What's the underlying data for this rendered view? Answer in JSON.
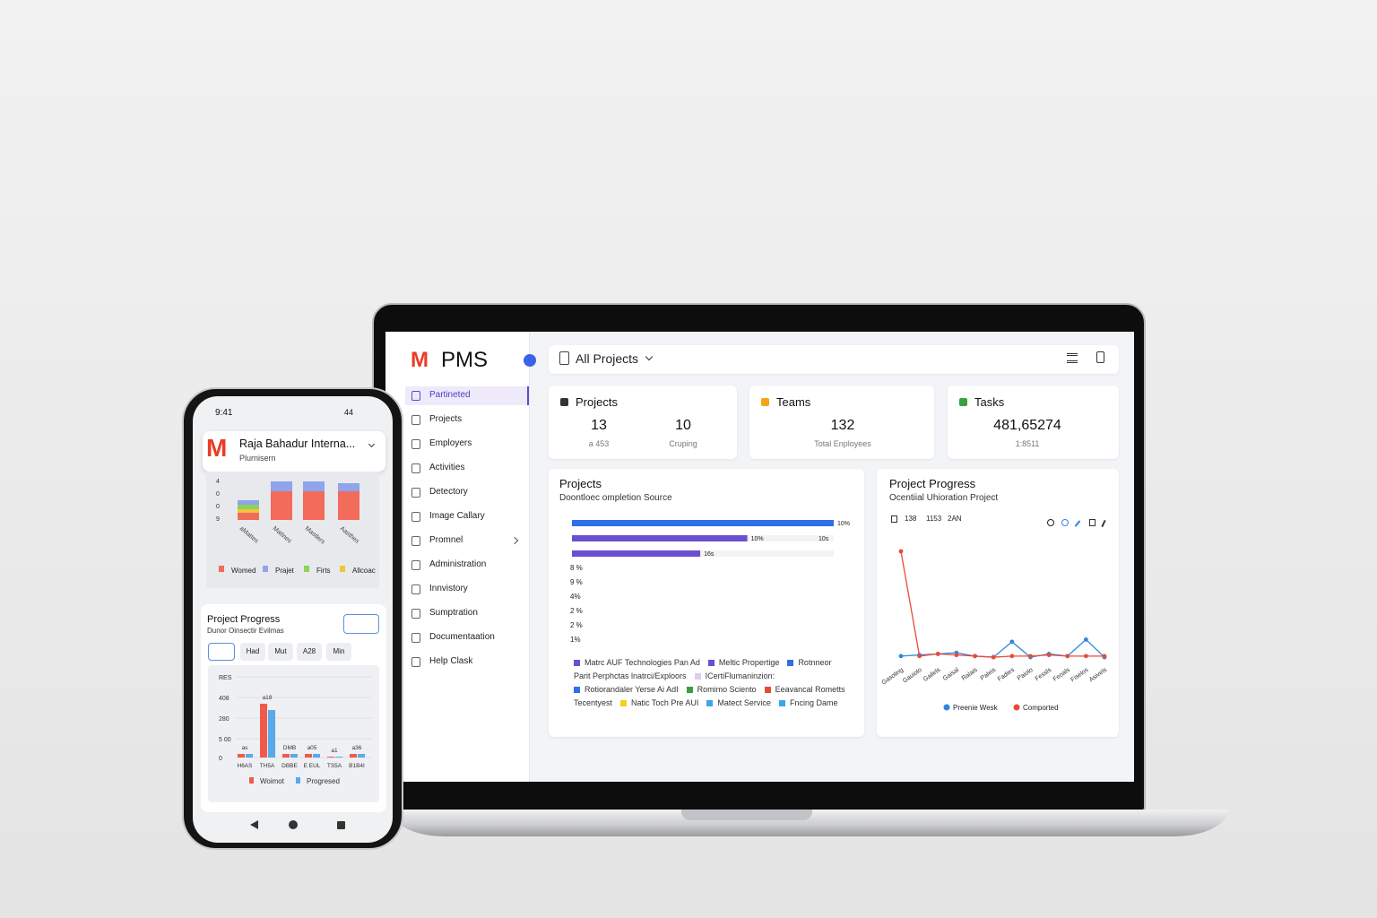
{
  "laptop": {
    "logo": "M",
    "app_name": "PMS",
    "project_selector": "All Projects",
    "sidebar": [
      "Partineted",
      "Projects",
      "Employers",
      "Activities",
      "Detectory",
      "Image Callary",
      "Promnel",
      "Administration",
      "Innvistory",
      "Sumptration",
      "Documentaation",
      "Help Clask"
    ],
    "cards": [
      {
        "title": "Projects",
        "icon_color": "#333333",
        "stats": [
          {
            "value": "13",
            "label": "a 453"
          },
          {
            "value": "10",
            "label": "Cruping"
          }
        ]
      },
      {
        "title": "Teams",
        "icon_color": "#f2a516",
        "stats": [
          {
            "value": "132",
            "label": "Total Enployees"
          }
        ]
      },
      {
        "title": "Tasks",
        "icon_color": "#3aa13f",
        "stats": [
          {
            "value": "481,65274",
            "label": "1:8511"
          }
        ]
      }
    ],
    "projects_panel": {
      "title": "Projects",
      "subtitle": "Doontloec ompletion Source",
      "bars": {
        "values": [
          100,
          67,
          49
        ],
        "xlim": [
          0,
          100
        ],
        "colors": [
          "#2f6fe8",
          "#6a4fd0",
          "#6a4fd0"
        ],
        "end_labels": [
          "10%",
          "10%",
          "16s"
        ],
        "side_label": "10s"
      },
      "axis_labels": [
        "8 %",
        "9 %",
        "4%",
        "2 %",
        "2 %",
        "1%"
      ],
      "legend": [
        [
          {
            "name": "Matrc AUF Technologies Pan  Ad",
            "color": "#6a4fd0"
          },
          {
            "name": "Meltic Propertige",
            "color": "#6a4fd0"
          },
          {
            "name": "Rotnneor",
            "color": "#2f6fe8"
          }
        ],
        [
          {
            "name": "Parit Perphctas lnatrci/Exploors"
          },
          {
            "name": "ICertiFlumaninzion:",
            "color": "#d9ccf3"
          }
        ],
        [
          {
            "name": "Rotiorandaler Yerse Ai AdI",
            "color": "#2f6fe8"
          },
          {
            "name": "Romimo Sciento",
            "color": "#3aa13f"
          },
          {
            "name": "Eeavancal Rometts",
            "color": "#e84a3a"
          }
        ],
        [
          {
            "name": "Tecentyest"
          },
          {
            "name": "Natic Toch Pre AUI",
            "color": "#f2d318"
          },
          {
            "name": "Matect Service",
            "color": "#3ea6e8"
          },
          {
            "name": "Fncing Dame",
            "color": "#3ea6e8"
          }
        ]
      ]
    },
    "progress_panel": {
      "title": "Project Progress",
      "subtitle": "Ocentiial Uhioration Project",
      "stats": [
        "138",
        "1153",
        "2AN"
      ],
      "chart": {
        "type": "line",
        "ylim": [
          0,
          100
        ],
        "categories": [
          "Gasoling",
          "Gauiolo",
          "Gailels",
          "Gaisal",
          "Ralais",
          "Paleis",
          "Fadies",
          "Paiolo",
          "Fessls",
          "Feoals",
          "Fiselos",
          "Asivels"
        ],
        "series": [
          {
            "name": "Preenie Wesk",
            "color": "#2f86e0",
            "values": [
              5,
              6,
              7,
              8,
              5,
              4,
              18,
              4,
              7,
              5,
              20,
              4
            ]
          },
          {
            "name": "Comported",
            "color": "#e84a3a",
            "values": [
              100,
              5,
              7,
              6,
              5,
              4,
              5,
              5,
              6,
              5,
              5,
              5
            ]
          }
        ]
      }
    }
  },
  "phone": {
    "time": "9:41",
    "status": "44",
    "logo": "M",
    "org": "Raja Bahadur Interna...",
    "org_sub": "Plurnisern",
    "top_chart": {
      "type": "bar",
      "stacked": true,
      "ylim": [
        0,
        50
      ],
      "axis_labels": [
        "4",
        "0",
        "0",
        "9"
      ],
      "categories": [
        "aMattes",
        "Mattnes",
        "Mastlers",
        "Aasthes"
      ],
      "series": [
        {
          "name": "Womed",
          "color": "#f26b5b",
          "values": [
            8,
            32,
            32,
            32
          ]
        },
        {
          "name": "Allcoac",
          "color": "#f2c43a",
          "values": [
            4,
            0,
            0,
            0
          ]
        },
        {
          "name": "Firts",
          "color": "#8bd35a",
          "values": [
            5,
            0,
            0,
            0
          ]
        },
        {
          "name": "Prajet",
          "color": "#8fa4ea",
          "values": [
            5,
            11,
            11,
            9
          ]
        }
      ]
    },
    "progress": {
      "title": "Project Progress",
      "subtitle": "Dunor Oinsectir Evilmas",
      "tabs": [
        "Had",
        "Mut",
        "A28",
        "Min"
      ],
      "chart": {
        "type": "bar",
        "ylim": [
          0,
          100
        ],
        "axis_labels": [
          "RES",
          "408",
          "280",
          "5 00",
          "0"
        ],
        "categories": [
          "H6AS",
          "TH5A",
          "DBBE",
          "E EUL",
          "TS5A",
          "B1B4I"
        ],
        "annotations": [
          "as",
          "a18",
          "DMB",
          "a05",
          "a1",
          "a36"
        ],
        "series": [
          {
            "name": "Woimot",
            "color": "#ef5a4a",
            "values": [
              4,
              60,
              4,
              4,
              1,
              4
            ]
          },
          {
            "name": "Progresed",
            "color": "#5aa9ea",
            "values": [
              4,
              53,
              4,
              4,
              1,
              4
            ]
          }
        ]
      }
    }
  }
}
